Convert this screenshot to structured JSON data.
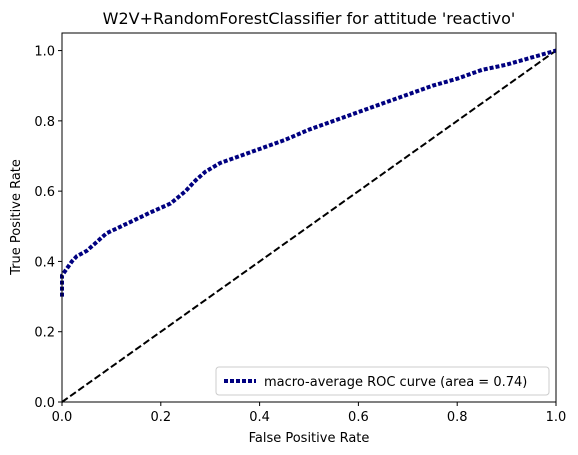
{
  "chart_data": {
    "type": "line",
    "title": "W2V+RandomForestClassifier for attitude 'reactivo'",
    "xlabel": "False Positive Rate",
    "ylabel": "True Positive Rate",
    "xlim": [
      0.0,
      1.0
    ],
    "ylim": [
      0.0,
      1.05
    ],
    "xticks": [
      "0.0",
      "0.2",
      "0.4",
      "0.6",
      "0.8",
      "1.0"
    ],
    "yticks": [
      "0.0",
      "0.2",
      "0.4",
      "0.6",
      "0.8",
      "1.0"
    ],
    "grid": false,
    "legend_position": "lower-right",
    "series": [
      {
        "name": "macro-average ROC curve (area = 0.74)",
        "color": "#000080",
        "style": "dotted",
        "x": [
          0.0,
          0.0,
          0.01,
          0.02,
          0.03,
          0.05,
          0.07,
          0.09,
          0.12,
          0.15,
          0.18,
          0.22,
          0.25,
          0.27,
          0.29,
          0.32,
          0.36,
          0.4,
          0.45,
          0.5,
          0.55,
          0.6,
          0.65,
          0.7,
          0.75,
          0.8,
          0.85,
          0.9,
          0.95,
          1.0
        ],
        "y": [
          0.3,
          0.36,
          0.38,
          0.4,
          0.415,
          0.43,
          0.455,
          0.48,
          0.5,
          0.52,
          0.54,
          0.565,
          0.6,
          0.63,
          0.655,
          0.68,
          0.7,
          0.72,
          0.745,
          0.775,
          0.8,
          0.825,
          0.85,
          0.875,
          0.9,
          0.92,
          0.945,
          0.96,
          0.98,
          1.0
        ]
      },
      {
        "name": "",
        "color": "#000000",
        "style": "dashed",
        "x": [
          0.0,
          1.0
        ],
        "y": [
          0.0,
          1.0
        ]
      }
    ]
  }
}
